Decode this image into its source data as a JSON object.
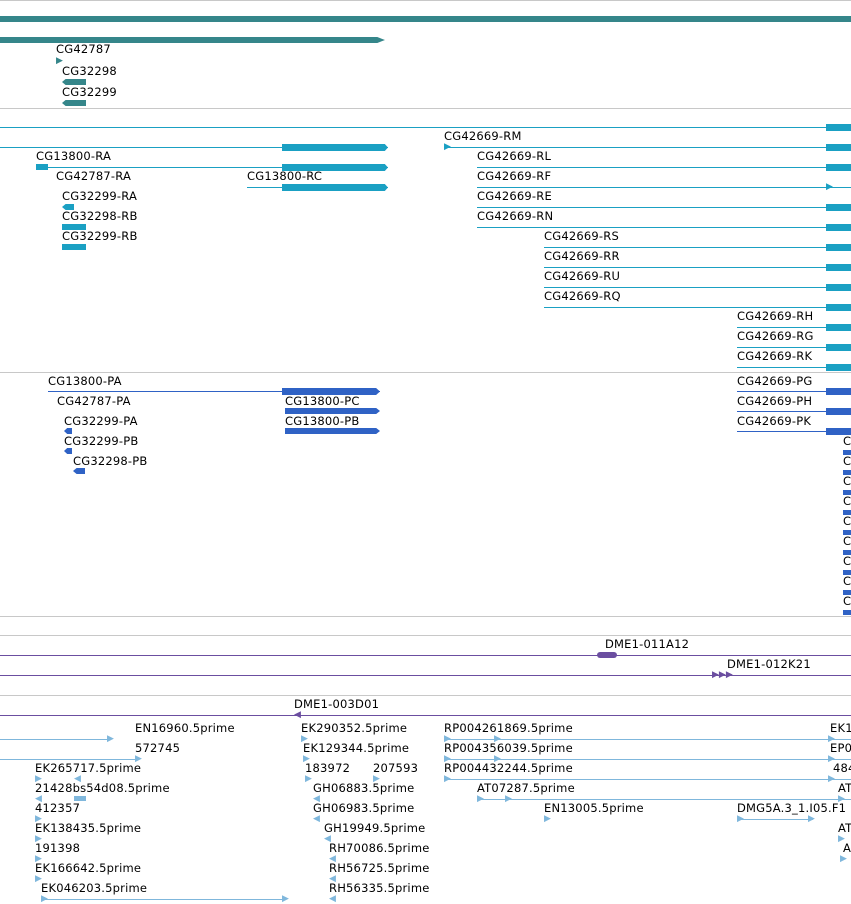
{
  "colors": {
    "track_teal": "#35868a",
    "transcript_cyan": "#1aa0c3",
    "protein_blue": "#2f62c5",
    "clone_purple": "#6b4ea0",
    "est_lightblue": "#7fb7dc",
    "separator": "#c8c8c8"
  },
  "gene_track": {
    "labels": [
      "CG42787",
      "CG32298",
      "CG32299"
    ]
  },
  "transcript_track": {
    "labels": [
      "CG13800-RA",
      "CG42787-RA",
      "CG13800-RC",
      "CG32299-RA",
      "CG32298-RB",
      "CG32299-RB",
      "CG42669-RM",
      "CG42669-RL",
      "CG42669-RF",
      "CG42669-RE",
      "CG42669-RN",
      "CG42669-RS",
      "CG42669-RR",
      "CG42669-RU",
      "CG42669-RQ",
      "CG42669-RH",
      "CG42669-RG",
      "CG42669-RK"
    ]
  },
  "protein_track": {
    "labels": [
      "CG13800-PA",
      "CG42787-PA",
      "CG32299-PA",
      "CG32299-PB",
      "CG32298-PB",
      "CG13800-PC",
      "CG13800-PB",
      "CG42669-PG",
      "CG42669-PH",
      "CG42669-PK"
    ],
    "clipped_glyph": "C"
  },
  "clone_track": {
    "labels": [
      "DME1-011A12",
      "DME1-012K21",
      "DME1-003D01"
    ]
  },
  "est_track": {
    "labels": [
      "EN16960.5prime",
      "572745",
      "EK265717.5prime",
      "21428bs54d08.5prime",
      "412357",
      "EK138435.5prime",
      "191398",
      "EK166642.5prime",
      "EK046203.5prime",
      "EK290352.5prime",
      "EK129344.5prime",
      "183972",
      "207593",
      "GH06883.5prime",
      "GH06983.5prime",
      "GH19949.5prime",
      "RH70086.5prime",
      "RH56725.5prime",
      "RH56335.5prime",
      "RP004261869.5prime",
      "RP004356039.5prime",
      "RP004432244.5prime",
      "AT07287.5prime",
      "EN13005.5prime",
      "DMG5A.3_1.I05.F1",
      "EK1",
      "EP0",
      "484",
      "AT",
      "AT",
      "A"
    ]
  }
}
